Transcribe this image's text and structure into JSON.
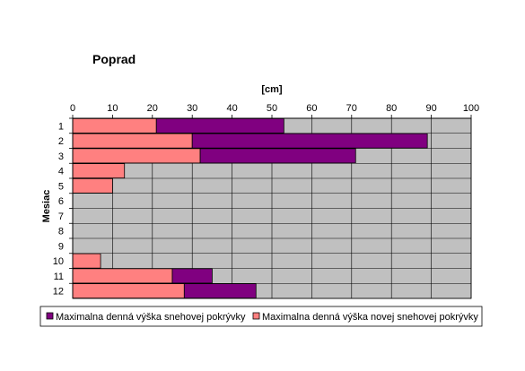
{
  "chart_data": {
    "type": "bar",
    "orientation": "horizontal",
    "stacked": true,
    "title": "Poprad",
    "xlabel": "[cm]",
    "ylabel": "Mesiac",
    "xlim": [
      0,
      100
    ],
    "xticks": [
      0,
      10,
      20,
      30,
      40,
      50,
      60,
      70,
      80,
      90,
      100
    ],
    "categories": [
      "1",
      "2",
      "3",
      "4",
      "5",
      "6",
      "7",
      "8",
      "9",
      "10",
      "11",
      "12"
    ],
    "series": [
      {
        "name": "Maximalna denná výška novej snehovej pokrývky",
        "color": "#FF8080",
        "values": [
          21,
          30,
          32,
          13,
          10,
          0,
          0,
          0,
          0,
          7,
          25,
          28
        ]
      },
      {
        "name": "Maximalna denná výška snehovej pokrývky",
        "color": "#800080",
        "values": [
          32,
          59,
          39,
          0,
          0,
          0,
          0,
          0,
          0,
          0,
          10,
          18
        ]
      }
    ],
    "totals": [
      53,
      89,
      71,
      13,
      10,
      0,
      0,
      0,
      0,
      7,
      35,
      46
    ],
    "grid": true,
    "plot_background": "#C0C0C0",
    "legend_position": "bottom",
    "legend_order": [
      1,
      0
    ]
  }
}
